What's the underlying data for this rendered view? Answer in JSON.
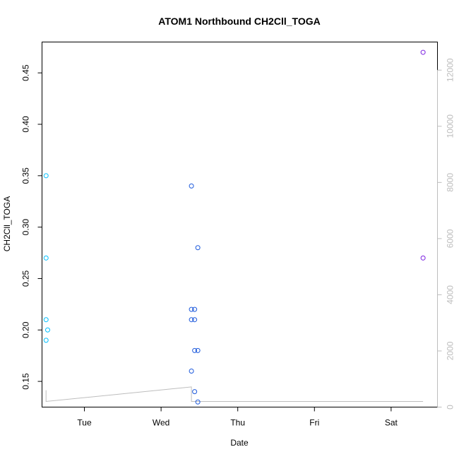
{
  "chart_data": {
    "type": "scatter",
    "title": "ATOM1 Northbound CH2Cll_TOGA",
    "xlabel": "Date",
    "ylabel": "CH2Cll_TOGA",
    "x_ticks": [
      "Tue",
      "Wed",
      "Thu",
      "Fri",
      "Sat"
    ],
    "y_ticks": [
      "0.15",
      "0.20",
      "0.25",
      "0.30",
      "0.35",
      "0.40",
      "0.45"
    ],
    "y2_ticks": [
      "0",
      "2000",
      "4000",
      "6000",
      "8000",
      "10000",
      "12000"
    ],
    "ylim": [
      0.125,
      0.48
    ],
    "y2lim": [
      0,
      13000
    ],
    "grid": false,
    "series": [
      {
        "color": "#00bfff",
        "points": [
          {
            "x": "Mon 12:00",
            "y": 0.35
          },
          {
            "x": "Mon 12:00",
            "y": 0.27
          },
          {
            "x": "Mon 12:00",
            "y": 0.21
          },
          {
            "x": "Mon 12:00",
            "y": 0.19
          },
          {
            "x": "Mon 12:30",
            "y": 0.2
          }
        ]
      },
      {
        "color": "#1e5adc",
        "points": [
          {
            "x": "Wed 09:30",
            "y": 0.34
          },
          {
            "x": "Wed 11:30",
            "y": 0.28
          },
          {
            "x": "Wed 09:30",
            "y": 0.22
          },
          {
            "x": "Wed 10:30",
            "y": 0.22
          },
          {
            "x": "Wed 09:30",
            "y": 0.21
          },
          {
            "x": "Wed 10:30",
            "y": 0.21
          },
          {
            "x": "Wed 10:30",
            "y": 0.18
          },
          {
            "x": "Wed 11:30",
            "y": 0.18
          },
          {
            "x": "Wed 09:30",
            "y": 0.16
          },
          {
            "x": "Wed 10:30",
            "y": 0.14
          },
          {
            "x": "Wed 11:30",
            "y": 0.13
          }
        ]
      },
      {
        "color": "#7a1fe0",
        "points": [
          {
            "x": "Sat 10:00",
            "y": 0.47
          },
          {
            "x": "Sat 10:00",
            "y": 0.27
          }
        ]
      }
    ],
    "line2": {
      "color": "#bdbdbd",
      "points": [
        {
          "x": "Mon 12:00",
          "y2": 600
        },
        {
          "x": "Mon 12:00",
          "y2": 200
        },
        {
          "x": "Wed 09:30",
          "y2": 720
        },
        {
          "x": "Wed 09:30",
          "y2": 200
        },
        {
          "x": "Sat 10:00",
          "y2": 200
        }
      ]
    }
  }
}
